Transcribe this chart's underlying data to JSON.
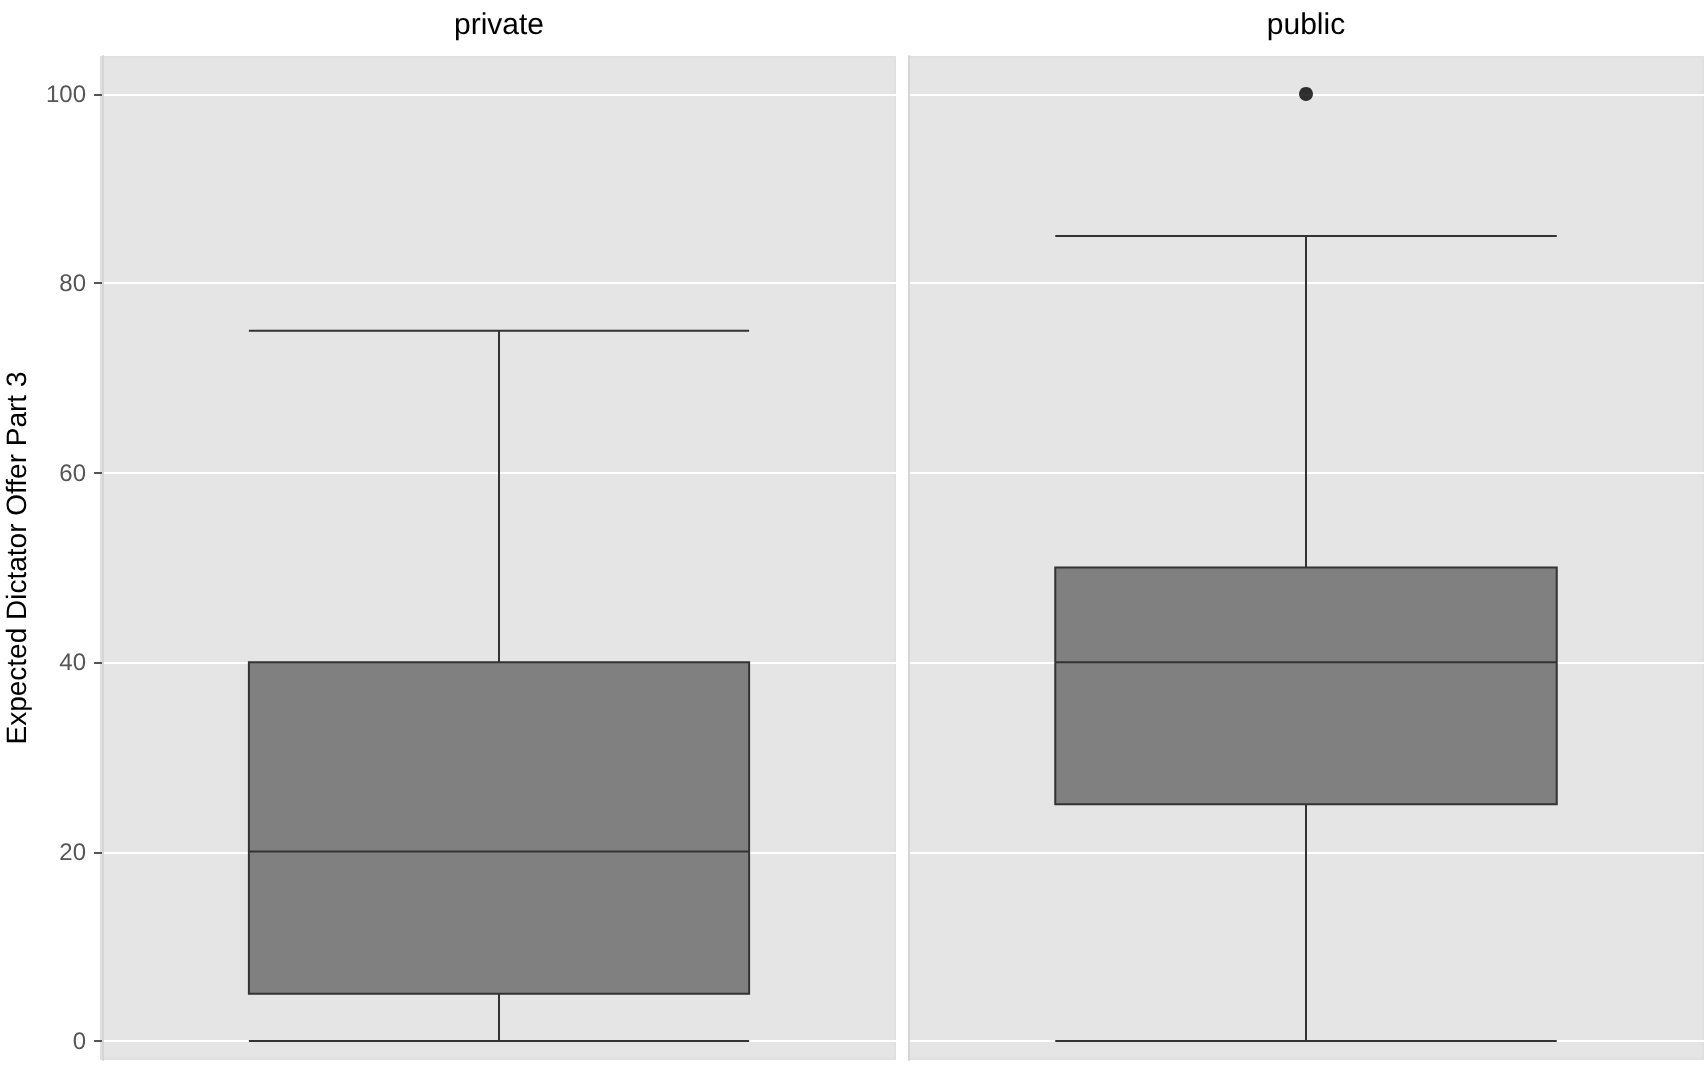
{
  "chart_data": {
    "type": "box",
    "ylabel": "Expected Dictator Offer Part 3",
    "categories": [
      "private",
      "public"
    ],
    "boxes": [
      {
        "low": 0,
        "q1": 5,
        "median": 20,
        "q3": 40,
        "high": 75
      },
      {
        "low": 0,
        "q1": 25,
        "median": 40,
        "q3": 50,
        "high": 85,
        "outliers": [
          100
        ]
      }
    ],
    "color": "#808080",
    "ylim": [
      -2,
      104
    ],
    "yticks": [
      0,
      20,
      40,
      60,
      80,
      100
    ],
    "grid": "y"
  }
}
